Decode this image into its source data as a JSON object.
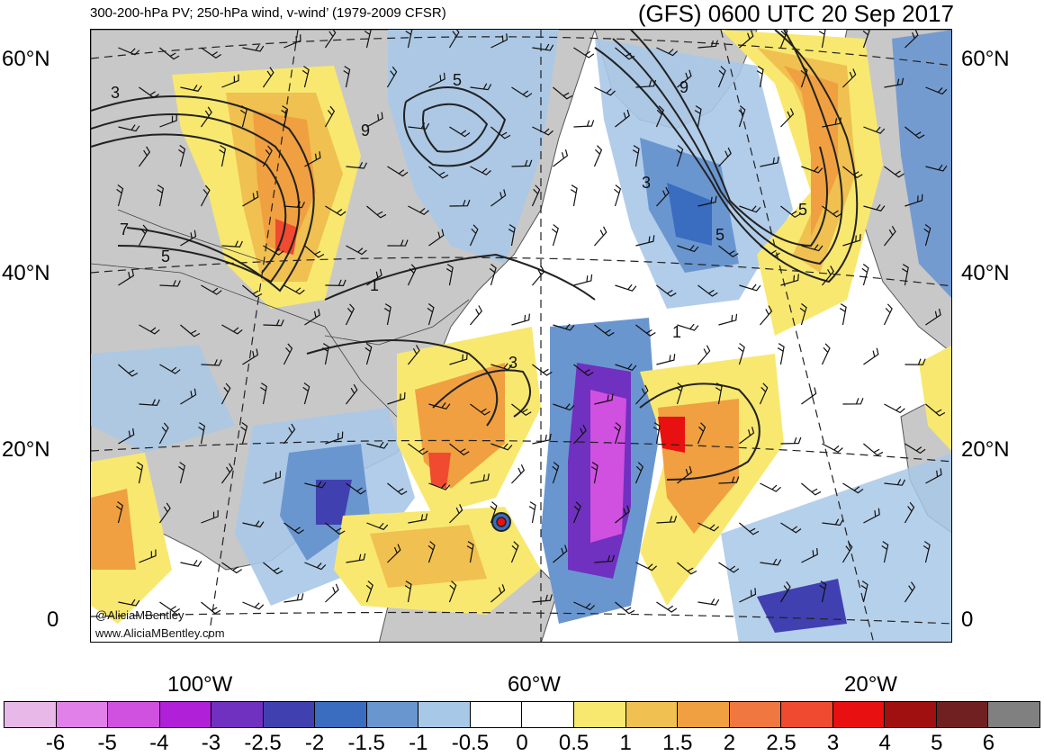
{
  "header": {
    "subtitle": "300-200-hPa PV; 250-hPa wind, v-wind’ (1979-2009 CFSR)",
    "title": "(GFS) 0600 UTC 20 Sep 2017"
  },
  "map": {
    "latitude_labels": [
      "60°N",
      "40°N",
      "20°N",
      "0"
    ],
    "longitude_labels": [
      "100°W",
      "60°W",
      "20°W"
    ],
    "contour_labels": [
      "3",
      "5",
      "9",
      "5",
      "3",
      "9",
      "7",
      "5",
      "1",
      "1",
      "3",
      "5"
    ],
    "credits": [
      "@AliciaMBentley",
      "www.AliciaMBentley.com"
    ],
    "land_color": "#c8c8c8",
    "ocean_color": "#ffffff"
  },
  "colorbar": {
    "ticks": [
      "-6",
      "-5",
      "-4",
      "-3",
      "-2.5",
      "-2",
      "-1.5",
      "-1",
      "-0.5",
      "0",
      "0.5",
      "1",
      "1.5",
      "2",
      "2.5",
      "3",
      "4",
      "5",
      "6"
    ],
    "colors": [
      "#e8b8e8",
      "#e080e8",
      "#d050e0",
      "#b020d8",
      "#7030c0",
      "#4040b0",
      "#3a6cc0",
      "#6a96d0",
      "#a8c8e8",
      "#ffffff",
      "#ffffff",
      "#f8e870",
      "#f0c050",
      "#f0a040",
      "#f07840",
      "#f04a30",
      "#e81010",
      "#a01010",
      "#702020",
      "#808080"
    ]
  }
}
